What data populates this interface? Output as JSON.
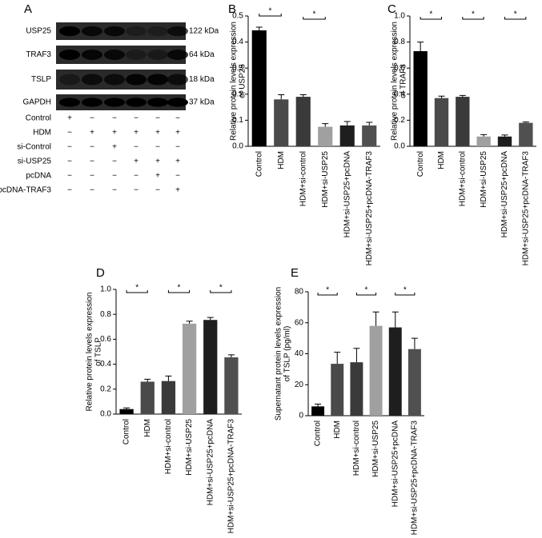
{
  "blot": {
    "panel": "A",
    "bands": [
      {
        "name": "USP25",
        "size": "122 kDa"
      },
      {
        "name": "TRAF3",
        "size": "64 kDa"
      },
      {
        "name": "TSLP",
        "size": "18 kDa"
      },
      {
        "name": "GAPDH",
        "size": "37 kDa"
      }
    ],
    "treatments": [
      {
        "name": "Control",
        "signs": [
          "+",
          "−",
          "−",
          "−",
          "−",
          "−"
        ]
      },
      {
        "name": "HDM",
        "signs": [
          "−",
          "+",
          "+",
          "+",
          "+",
          "+"
        ]
      },
      {
        "name": "si-Control",
        "signs": [
          "−",
          "−",
          "+",
          "−",
          "−",
          "−"
        ]
      },
      {
        "name": "si-USP25",
        "signs": [
          "−",
          "−",
          "−",
          "+",
          "+",
          "+"
        ]
      },
      {
        "name": "pcDNA",
        "signs": [
          "−",
          "−",
          "−",
          "−",
          "+",
          "−"
        ]
      },
      {
        "name": "pcDNA-TRAF3",
        "signs": [
          "−",
          "−",
          "−",
          "−",
          "−",
          "+"
        ]
      }
    ]
  },
  "chart_data": [
    {
      "type": "bar",
      "panel": "B",
      "ylabel": [
        "Relative protein levels expression",
        "of USP25"
      ],
      "categories": [
        "Control",
        "HDM",
        "HDM+si-control",
        "HDM+si-USP25",
        "HDM+si-USP25+pcDNA",
        "HDM+si-USP25+pcDNA-TRAF3"
      ],
      "values": [
        0.445,
        0.18,
        0.19,
        0.075,
        0.08,
        0.08
      ],
      "errors": [
        0.012,
        0.018,
        0.008,
        0.012,
        0.015,
        0.012
      ],
      "colors": [
        "#000000",
        "#4a4a4a",
        "#3a3a3a",
        "#a0a0a0",
        "#1e1e1e",
        "#505050"
      ],
      "ylim": [
        0,
        0.5
      ],
      "yticks": [
        {
          "value": 0,
          "label": "0.0"
        },
        0.1,
        0.2,
        0.3,
        0.4,
        0.5
      ],
      "significance": [
        {
          "label": "*",
          "categories": [
            0,
            1
          ]
        },
        {
          "label": "*",
          "categories": [
            2,
            3
          ]
        }
      ]
    },
    {
      "type": "bar",
      "panel": "C",
      "ylabel": [
        "Relative protein levels expression",
        "of TRAF3"
      ],
      "categories": [
        "Control",
        "HDM",
        "HDM+si-control",
        "HDM+si-USP25",
        "HDM+si-USP25+pcDNA",
        "HDM+si-USP25+pcDNA-TRAF3"
      ],
      "values": [
        0.73,
        0.37,
        0.38,
        0.075,
        0.075,
        0.18
      ],
      "errors": [
        0.07,
        0.015,
        0.01,
        0.015,
        0.012,
        0.006
      ],
      "colors": [
        "#000000",
        "#4a4a4a",
        "#3a3a3a",
        "#a0a0a0",
        "#1e1e1e",
        "#505050"
      ],
      "ylim": [
        0,
        1.0
      ],
      "yticks": [
        {
          "value": 0,
          "label": "0.0"
        },
        0.2,
        0.4,
        0.6,
        0.8,
        {
          "value": 1,
          "label": "1.0"
        }
      ],
      "significance": [
        {
          "label": "*",
          "categories": [
            0,
            1
          ]
        },
        {
          "label": "*",
          "categories": [
            2,
            3
          ]
        },
        {
          "label": "*",
          "categories": [
            4,
            5
          ]
        }
      ]
    },
    {
      "type": "bar",
      "panel": "D",
      "ylabel": [
        "Relative protein levels expression",
        "of TSLP"
      ],
      "categories": [
        "Control",
        "HDM",
        "HDM+si-control",
        "HDM+si-USP25",
        "HDM+si-USP25+pcDNA",
        "HDM+si-USP25+pcDNA-TRAF3"
      ],
      "values": [
        0.04,
        0.26,
        0.265,
        0.725,
        0.755,
        0.455
      ],
      "errors": [
        0.01,
        0.02,
        0.04,
        0.02,
        0.02,
        0.02
      ],
      "colors": [
        "#000000",
        "#4a4a4a",
        "#3a3a3a",
        "#a0a0a0",
        "#1e1e1e",
        "#505050"
      ],
      "ylim": [
        0,
        1.0
      ],
      "yticks": [
        {
          "value": 0,
          "label": "0.0"
        },
        0.2,
        0.4,
        0.6,
        0.8,
        {
          "value": 1,
          "label": "1.0"
        }
      ],
      "significance": [
        {
          "label": "*",
          "categories": [
            0,
            1
          ]
        },
        {
          "label": "*",
          "categories": [
            2,
            3
          ]
        },
        {
          "label": "*",
          "categories": [
            4,
            5
          ]
        }
      ]
    },
    {
      "type": "bar",
      "panel": "E",
      "ylabel": [
        "Supernatant protein levels expression",
        "of TSLP (pg/ml)"
      ],
      "categories": [
        "Control",
        "HDM",
        "HDM+si-control",
        "HDM+si-USP25",
        "HDM+si-USP25+pcDNA",
        "HDM+si-USP25+pcDNA-TRAF3"
      ],
      "values": [
        6,
        33.5,
        34.5,
        58,
        57,
        43
      ],
      "errors": [
        1.5,
        7.5,
        9,
        9,
        10,
        7
      ],
      "colors": [
        "#000000",
        "#4a4a4a",
        "#3a3a3a",
        "#a0a0a0",
        "#1e1e1e",
        "#505050"
      ],
      "ylim": [
        0,
        80
      ],
      "yticks": [
        0,
        20,
        40,
        60,
        80
      ],
      "significance": [
        {
          "label": "*",
          "categories": [
            0,
            1
          ]
        },
        {
          "label": "*",
          "categories": [
            2,
            3
          ]
        },
        {
          "label": "*",
          "categories": [
            4,
            5
          ]
        }
      ]
    }
  ]
}
